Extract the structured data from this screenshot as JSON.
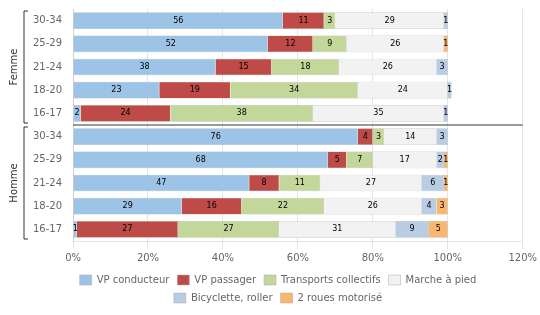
{
  "chart_data": {
    "type": "bar",
    "orientation": "horizontal",
    "stacked": true,
    "data_labels": true,
    "grid": true,
    "legend": "bottom",
    "categories": [
      [
        "Femme",
        "30-34"
      ],
      [
        "Femme",
        "25-29"
      ],
      [
        "Femme",
        "21-24"
      ],
      [
        "Femme",
        "18-20"
      ],
      [
        "Femme",
        "16-17"
      ],
      [
        "Homme",
        "30-34"
      ],
      [
        "Homme",
        "25-29"
      ],
      [
        "Homme",
        "21-24"
      ],
      [
        "Homme",
        "18-20"
      ],
      [
        "Homme",
        "16-17"
      ]
    ],
    "series": [
      {
        "name": "VP conducteur",
        "color": "#9dc3e6",
        "values": [
          56,
          52,
          38,
          23,
          2,
          76,
          68,
          47,
          29,
          1
        ]
      },
      {
        "name": "VP passager",
        "color": "#be4b48",
        "values": [
          11,
          12,
          15,
          19,
          24,
          4,
          5,
          8,
          16,
          27
        ]
      },
      {
        "name": "Transports collectifs",
        "color": "#c4d79b",
        "values": [
          3,
          9,
          18,
          34,
          38,
          3,
          7,
          11,
          22,
          27
        ]
      },
      {
        "name": "Marche à pied",
        "color": "#f2f2f2",
        "values": [
          29,
          26,
          26,
          24,
          35,
          14,
          17,
          27,
          26,
          31
        ]
      },
      {
        "name": "Bicyclette, roller",
        "color": "#b8cce4",
        "values": [
          1,
          0,
          3,
          1,
          1,
          3,
          2,
          6,
          4,
          9
        ]
      },
      {
        "name": "2 roues motorisé",
        "color": "#f9b66d",
        "values": [
          0,
          1,
          0,
          0,
          0,
          0,
          1,
          1,
          3,
          5
        ]
      }
    ],
    "xlim": [
      0,
      120
    ],
    "xticks": [
      {
        "value": 0,
        "label": "0%"
      },
      {
        "value": 20,
        "label": "20%"
      },
      {
        "value": 40,
        "label": "40%"
      },
      {
        "value": 60,
        "label": "60%"
      },
      {
        "value": 80,
        "label": "80%"
      },
      {
        "value": 100,
        "label": "100%"
      },
      {
        "value": 120,
        "label": "120%"
      }
    ]
  }
}
